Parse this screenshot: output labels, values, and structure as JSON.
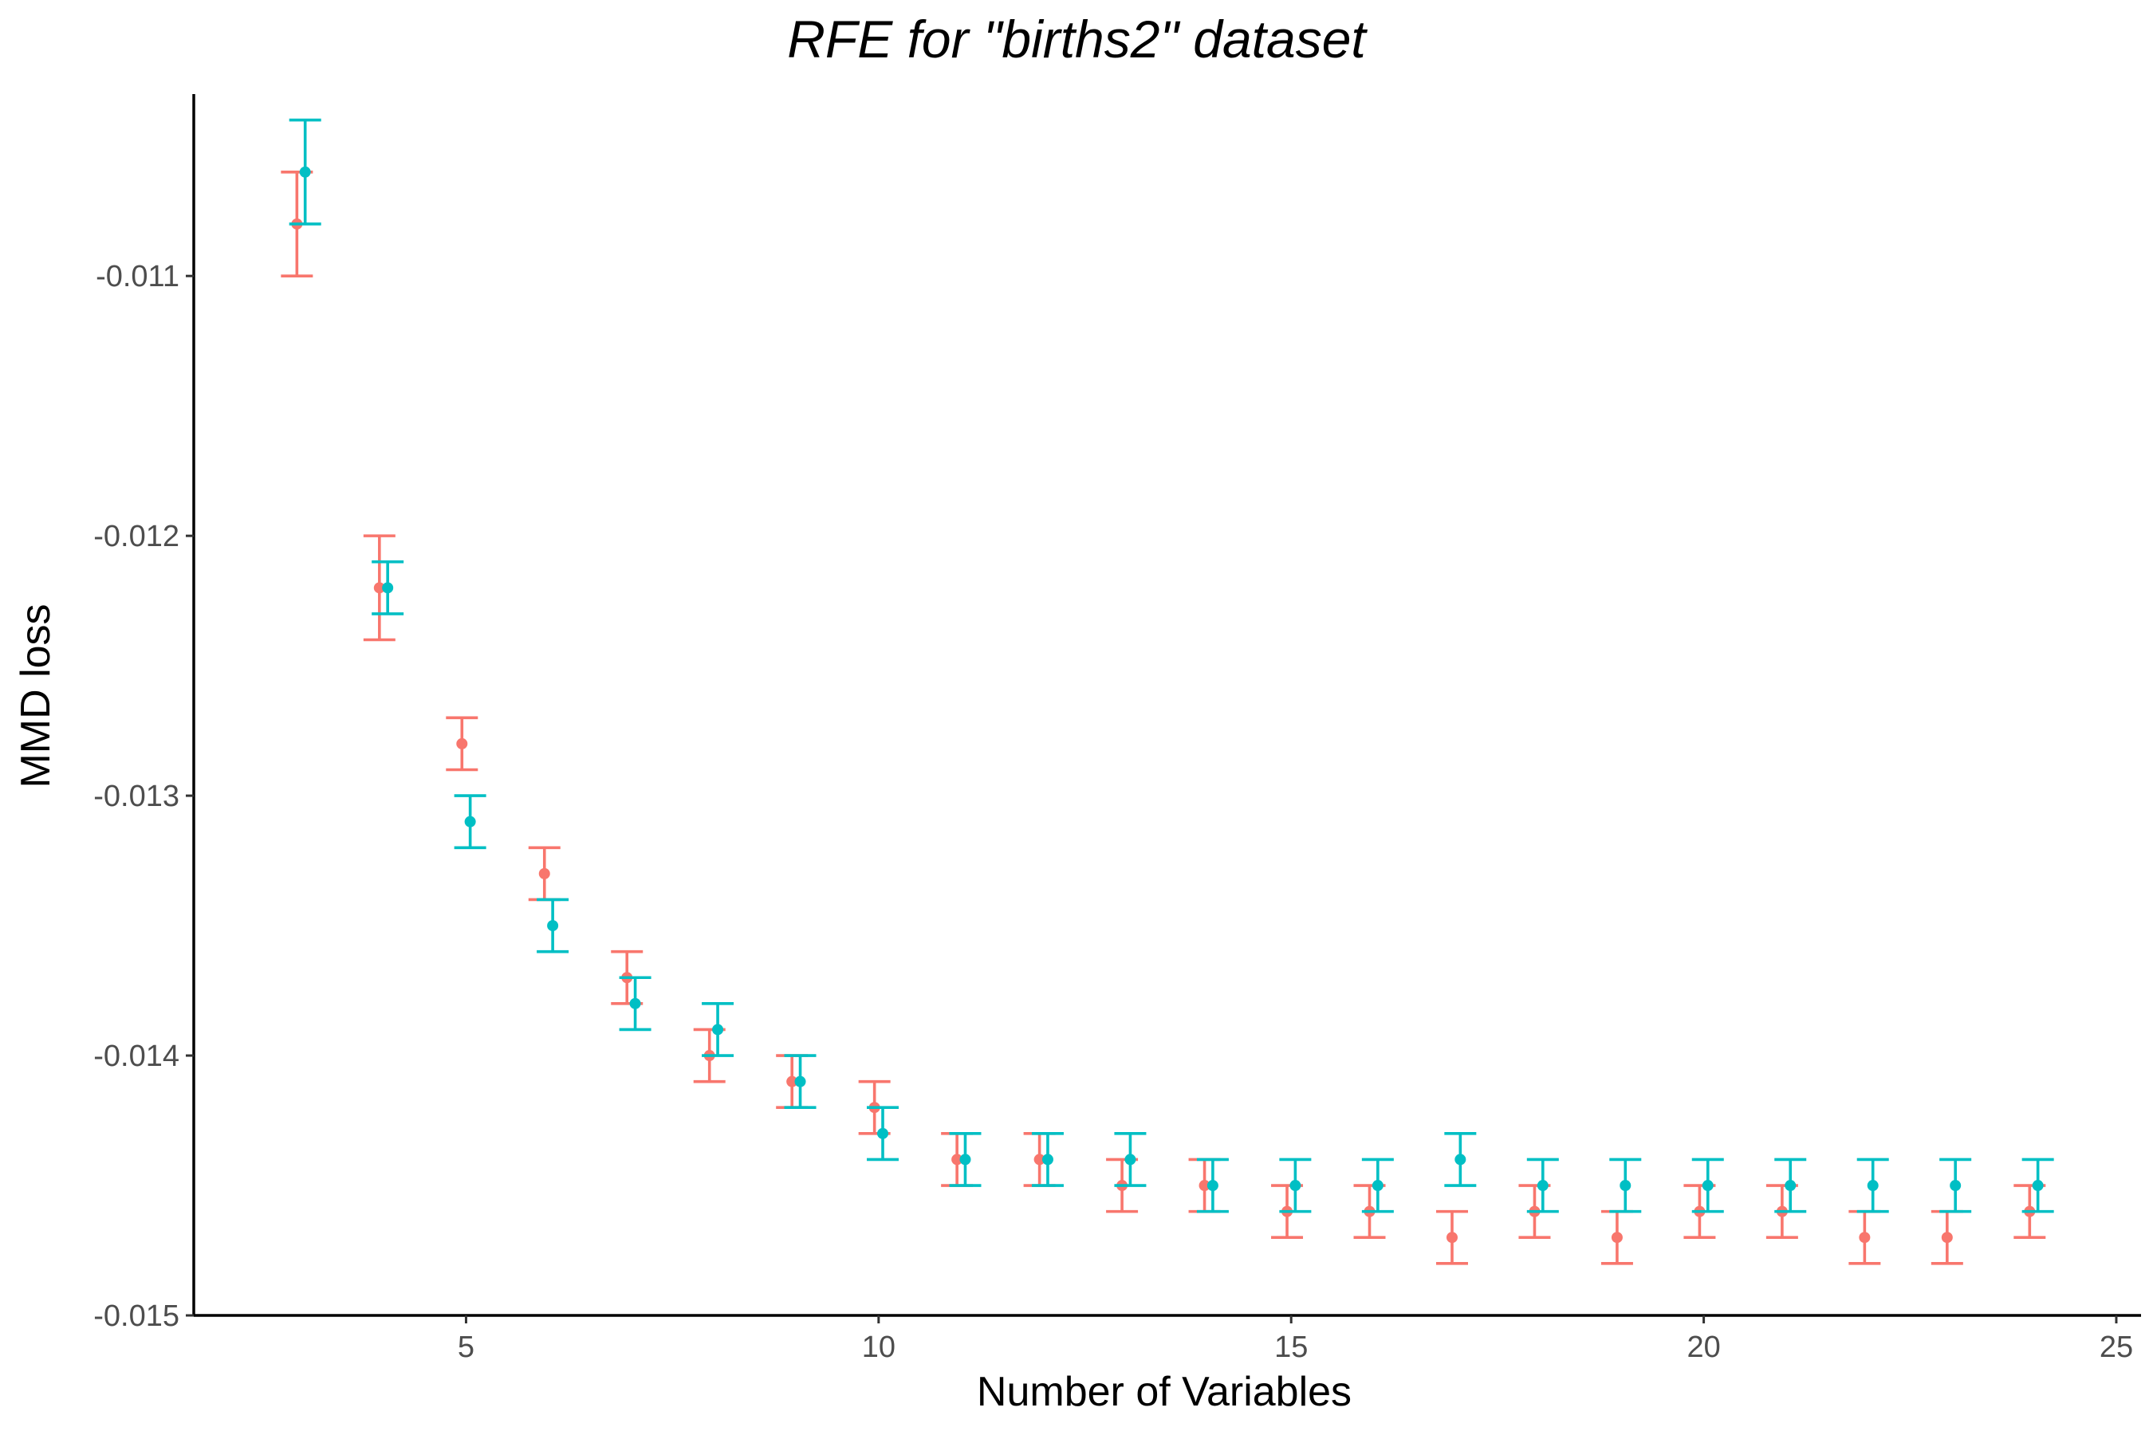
{
  "chart_data": {
    "type": "scatter",
    "subtype": "point-with-errorbars",
    "title": "RFE for \"births2\" dataset",
    "xlabel": "Number of Variables",
    "ylabel": "MMD loss",
    "xlim": [
      1.7,
      25.3
    ],
    "ylim": [
      -0.015,
      -0.0103
    ],
    "x_ticks": [
      5,
      10,
      15,
      20,
      25
    ],
    "x_tick_labels": [
      "5",
      "10",
      "15",
      "20",
      "25"
    ],
    "y_ticks": [
      -0.011,
      -0.012,
      -0.013,
      -0.014,
      -0.015
    ],
    "y_tick_labels": [
      "-0.011",
      "-0.012",
      "-0.013",
      "-0.014",
      "-0.015"
    ],
    "grid": false,
    "legend": "none",
    "dodge": 0.1,
    "series": [
      {
        "color": "#f8766d",
        "points": [
          {
            "x": 3,
            "y": -0.0108,
            "ymin": -0.011,
            "ymax": -0.0106
          },
          {
            "x": 4,
            "y": -0.0122,
            "ymin": -0.0124,
            "ymax": -0.012
          },
          {
            "x": 5,
            "y": -0.0128,
            "ymin": -0.0129,
            "ymax": -0.0127
          },
          {
            "x": 6,
            "y": -0.0133,
            "ymin": -0.0134,
            "ymax": -0.0132
          },
          {
            "x": 7,
            "y": -0.0137,
            "ymin": -0.0138,
            "ymax": -0.0136
          },
          {
            "x": 8,
            "y": -0.014,
            "ymin": -0.0141,
            "ymax": -0.0139
          },
          {
            "x": 9,
            "y": -0.0141,
            "ymin": -0.0142,
            "ymax": -0.014
          },
          {
            "x": 10,
            "y": -0.0142,
            "ymin": -0.0143,
            "ymax": -0.0141
          },
          {
            "x": 11,
            "y": -0.0144,
            "ymin": -0.0145,
            "ymax": -0.0143
          },
          {
            "x": 12,
            "y": -0.0144,
            "ymin": -0.0145,
            "ymax": -0.0143
          },
          {
            "x": 13,
            "y": -0.0145,
            "ymin": -0.0146,
            "ymax": -0.0144
          },
          {
            "x": 14,
            "y": -0.0145,
            "ymin": -0.0146,
            "ymax": -0.0144
          },
          {
            "x": 15,
            "y": -0.0146,
            "ymin": -0.0147,
            "ymax": -0.0145
          },
          {
            "x": 16,
            "y": -0.0146,
            "ymin": -0.0147,
            "ymax": -0.0145
          },
          {
            "x": 17,
            "y": -0.0147,
            "ymin": -0.0148,
            "ymax": -0.0146
          },
          {
            "x": 18,
            "y": -0.0146,
            "ymin": -0.0147,
            "ymax": -0.0145
          },
          {
            "x": 19,
            "y": -0.0147,
            "ymin": -0.0148,
            "ymax": -0.0146
          },
          {
            "x": 20,
            "y": -0.0146,
            "ymin": -0.0147,
            "ymax": -0.0145
          },
          {
            "x": 21,
            "y": -0.0146,
            "ymin": -0.0147,
            "ymax": -0.0145
          },
          {
            "x": 22,
            "y": -0.0147,
            "ymin": -0.0148,
            "ymax": -0.0146
          },
          {
            "x": 23,
            "y": -0.0147,
            "ymin": -0.0148,
            "ymax": -0.0146
          },
          {
            "x": 24,
            "y": -0.0146,
            "ymin": -0.0147,
            "ymax": -0.0145
          }
        ]
      },
      {
        "color": "#00bfc4",
        "points": [
          {
            "x": 3,
            "y": -0.0106,
            "ymin": -0.0108,
            "ymax": -0.0104
          },
          {
            "x": 4,
            "y": -0.0122,
            "ymin": -0.0123,
            "ymax": -0.0121
          },
          {
            "x": 5,
            "y": -0.0131,
            "ymin": -0.0132,
            "ymax": -0.013
          },
          {
            "x": 6,
            "y": -0.0135,
            "ymin": -0.0136,
            "ymax": -0.0134
          },
          {
            "x": 7,
            "y": -0.0138,
            "ymin": -0.0139,
            "ymax": -0.0137
          },
          {
            "x": 8,
            "y": -0.0139,
            "ymin": -0.014,
            "ymax": -0.0138
          },
          {
            "x": 9,
            "y": -0.0141,
            "ymin": -0.0142,
            "ymax": -0.014
          },
          {
            "x": 10,
            "y": -0.0143,
            "ymin": -0.0144,
            "ymax": -0.0142
          },
          {
            "x": 11,
            "y": -0.0144,
            "ymin": -0.0145,
            "ymax": -0.0143
          },
          {
            "x": 12,
            "y": -0.0144,
            "ymin": -0.0145,
            "ymax": -0.0143
          },
          {
            "x": 13,
            "y": -0.0144,
            "ymin": -0.0145,
            "ymax": -0.0143
          },
          {
            "x": 14,
            "y": -0.0145,
            "ymin": -0.0146,
            "ymax": -0.0144
          },
          {
            "x": 15,
            "y": -0.0145,
            "ymin": -0.0146,
            "ymax": -0.0144
          },
          {
            "x": 16,
            "y": -0.0145,
            "ymin": -0.0146,
            "ymax": -0.0144
          },
          {
            "x": 17,
            "y": -0.0144,
            "ymin": -0.0145,
            "ymax": -0.0143
          },
          {
            "x": 18,
            "y": -0.0145,
            "ymin": -0.0146,
            "ymax": -0.0144
          },
          {
            "x": 19,
            "y": -0.0145,
            "ymin": -0.0146,
            "ymax": -0.0144
          },
          {
            "x": 20,
            "y": -0.0145,
            "ymin": -0.0146,
            "ymax": -0.0144
          },
          {
            "x": 21,
            "y": -0.0145,
            "ymin": -0.0146,
            "ymax": -0.0144
          },
          {
            "x": 22,
            "y": -0.0145,
            "ymin": -0.0146,
            "ymax": -0.0144
          },
          {
            "x": 23,
            "y": -0.0145,
            "ymin": -0.0146,
            "ymax": -0.0144
          },
          {
            "x": 24,
            "y": -0.0145,
            "ymin": -0.0146,
            "ymax": -0.0144
          }
        ]
      }
    ]
  }
}
